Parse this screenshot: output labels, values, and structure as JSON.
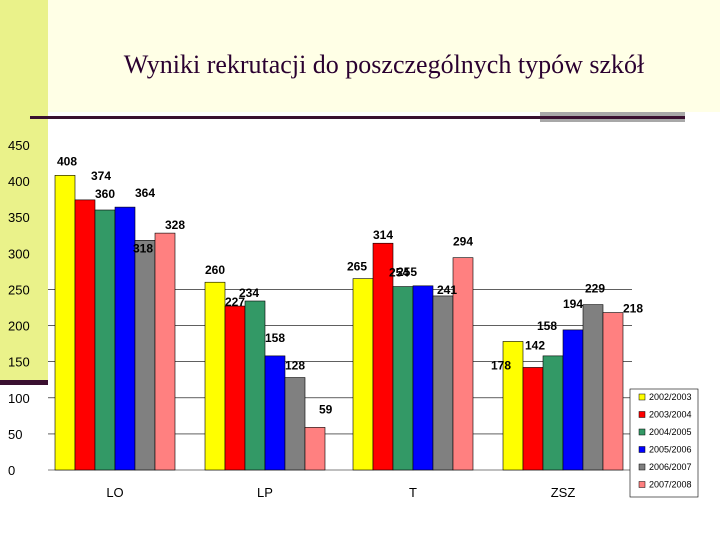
{
  "title": "Wyniki rekrutacji do poszczególnych typów szkół",
  "chart_data": {
    "type": "bar",
    "title": "Wyniki rekrutacji do poszczególnych typów szkół",
    "categories": [
      "LO",
      "LP",
      "T",
      "ZSZ"
    ],
    "ylim": [
      0,
      450
    ],
    "yticks": [
      0,
      50,
      100,
      150,
      200,
      250,
      300,
      350,
      400,
      450
    ],
    "grid": true,
    "legend_position": "bottom-right",
    "series": [
      {
        "name": "2002/2003",
        "color": "#ffff00",
        "values": [
          408,
          260,
          265,
          178
        ]
      },
      {
        "name": "2003/2004",
        "color": "#ff0000",
        "values": [
          374,
          227,
          314,
          142
        ]
      },
      {
        "name": "2004/2005",
        "color": "#339966",
        "values": [
          360,
          234,
          254,
          158
        ]
      },
      {
        "name": "2005/2006",
        "color": "#0000ff",
        "values": [
          364,
          158,
          255,
          194
        ]
      },
      {
        "name": "2006/2007",
        "color": "#808080",
        "values": [
          318,
          128,
          241,
          229
        ]
      },
      {
        "name": "2007/2008",
        "color": "#ff8080",
        "values": [
          328,
          59,
          294,
          218
        ]
      }
    ]
  }
}
